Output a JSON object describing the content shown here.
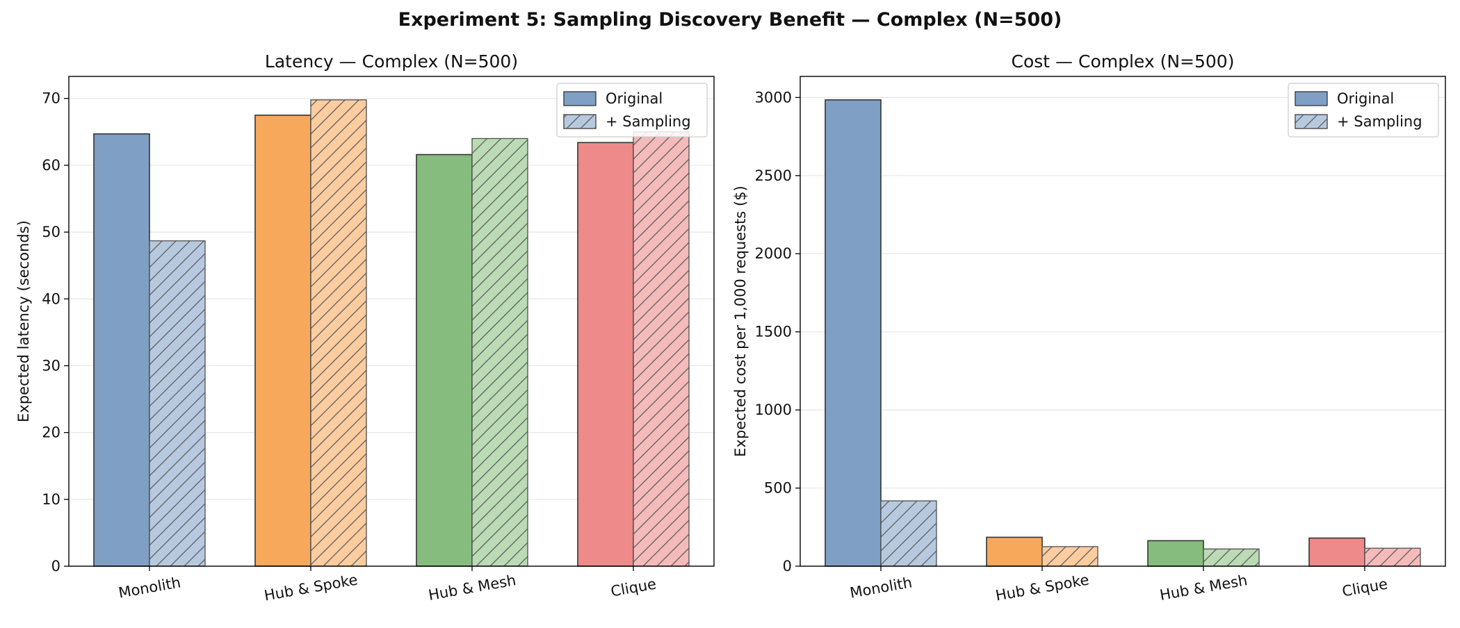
{
  "figure": {
    "title": "Experiment 5: Sampling Discovery Benefit — Complex (N=500)"
  },
  "colors": {
    "original": [
      "#7fa0c4",
      "#f8a85b",
      "#86bc7e",
      "#ef8a8a"
    ],
    "sampling": [
      "#b6c9df",
      "#fdcc9f",
      "#badbb4",
      "#f5baba"
    ],
    "edge": "#333333",
    "hatch": "#666666",
    "grid": "#e6e6e6"
  },
  "chart_data": [
    {
      "type": "bar",
      "title": "Latency — Complex (N=500)",
      "xlabel": "",
      "ylabel": "Expected latency (seconds)",
      "categories": [
        "Monolith",
        "Hub & Spoke",
        "Hub & Mesh",
        "Clique"
      ],
      "series": [
        {
          "name": "Original",
          "values": [
            64.7,
            67.5,
            61.6,
            63.4
          ]
        },
        {
          "name": "+ Sampling",
          "values": [
            48.7,
            69.8,
            64.0,
            65.0
          ]
        }
      ],
      "ylim": [
        0,
        73.3
      ],
      "yticks": [
        0,
        10,
        20,
        30,
        40,
        50,
        60,
        70
      ],
      "grid": "y",
      "legend": "top-right"
    },
    {
      "type": "bar",
      "title": "Cost — Complex (N=500)",
      "xlabel": "",
      "ylabel": "Expected cost per 1,000 requests ($)",
      "categories": [
        "Monolith",
        "Hub & Spoke",
        "Hub & Mesh",
        "Clique"
      ],
      "series": [
        {
          "name": "Original",
          "values": [
            2985,
            185,
            163,
            180
          ]
        },
        {
          "name": "+ Sampling",
          "values": [
            418,
            125,
            110,
            115
          ]
        }
      ],
      "ylim": [
        0,
        3135
      ],
      "yticks": [
        0,
        500,
        1000,
        1500,
        2000,
        2500,
        3000
      ],
      "grid": "y",
      "legend": "top-right"
    }
  ]
}
